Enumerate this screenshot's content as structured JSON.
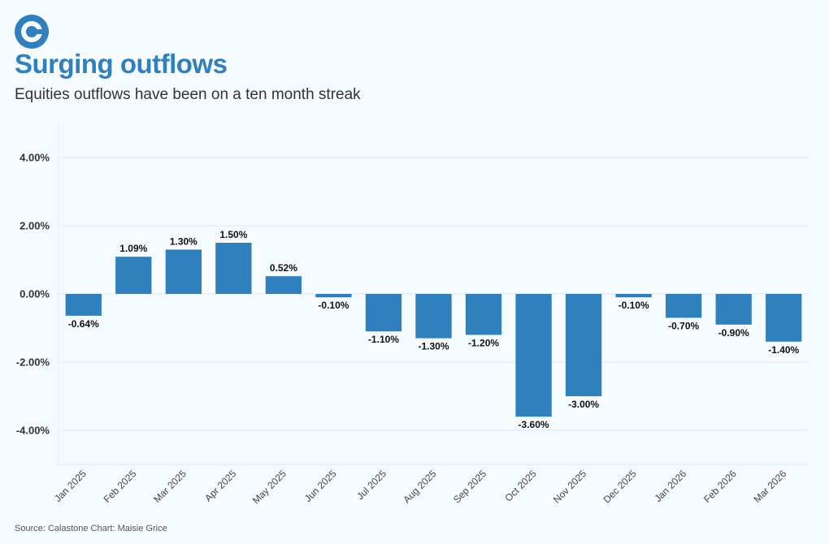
{
  "header": {
    "title": "Surging outflows",
    "subtitle": "Equities outflows have been on a ten month streak"
  },
  "footer": {
    "source": "Source: Calastone Chart: Maisie Grice"
  },
  "colors": {
    "bar": "#2f80bd",
    "title": "#2f80bd",
    "grid": "#e4e8ea"
  },
  "chart_data": {
    "type": "bar",
    "title": "Surging outflows",
    "xlabel": "",
    "ylabel": "",
    "ylim": [
      -5,
      5
    ],
    "y_ticks": [
      4,
      2,
      0,
      -2,
      -4
    ],
    "y_tick_labels": [
      "4.00%",
      "2.00%",
      "0.00%",
      "-2.00%",
      "-4.00%"
    ],
    "categories": [
      "Jan 2025",
      "Feb 2025",
      "Mar 2025",
      "Apr 2025",
      "May 2025",
      "Jun 2025",
      "Jul 2025",
      "Aug 2025",
      "Sep 2025",
      "Oct 2025",
      "Nov 2025",
      "Dec 2025",
      "Jan 2026",
      "Feb 2026",
      "Mar 2026"
    ],
    "values": [
      -0.64,
      1.09,
      1.3,
      1.5,
      0.52,
      -0.1,
      -1.1,
      -1.3,
      -1.2,
      -3.6,
      -3.0,
      -0.1,
      -0.7,
      -0.9,
      -1.4
    ],
    "data_labels": [
      "-0.64%",
      "1.09%",
      "1.30%",
      "1.50%",
      "0.52%",
      "-0.10%",
      "-1.10%",
      "-1.30%",
      "-1.20%",
      "-3.60%",
      "-3.00%",
      "-0.10%",
      "-0.70%",
      "-0.90%",
      "-1.40%"
    ],
    "grid": true
  }
}
